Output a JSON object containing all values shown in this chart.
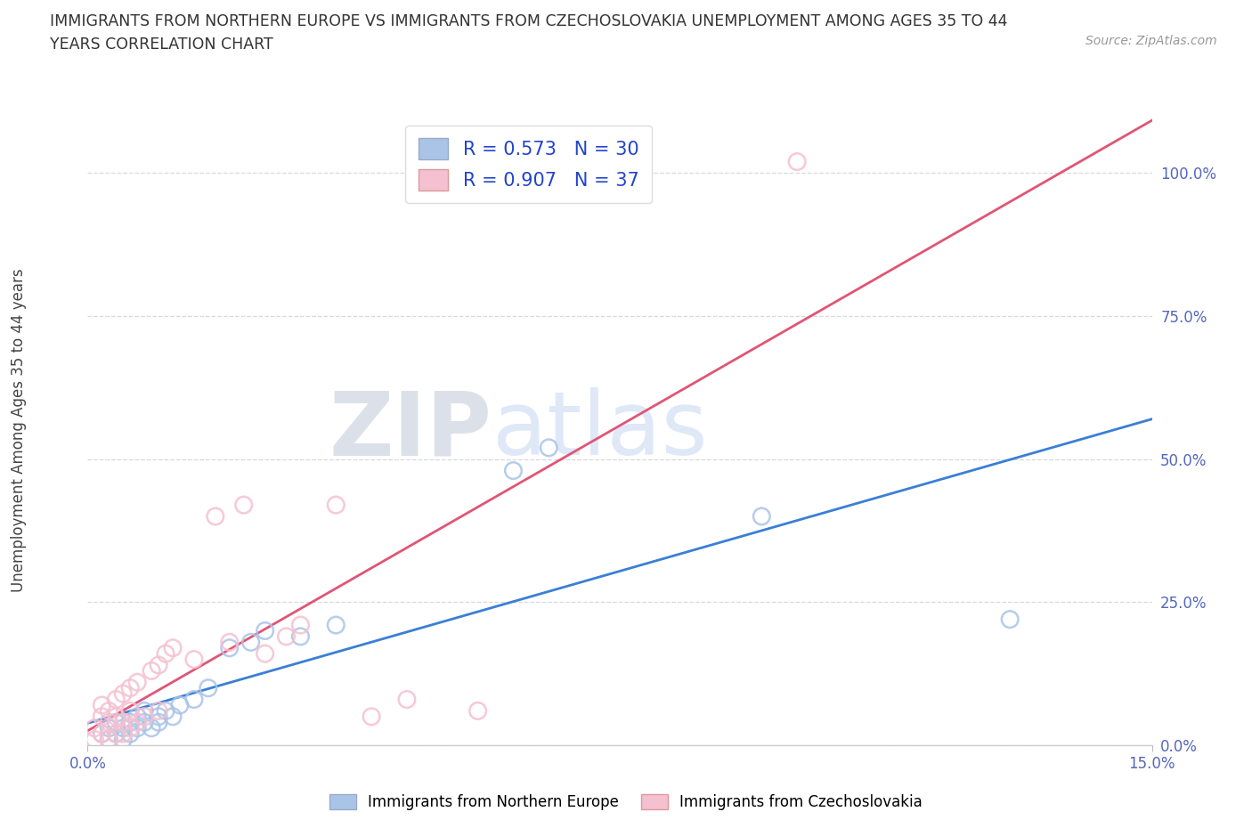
{
  "title_line1": "IMMIGRANTS FROM NORTHERN EUROPE VS IMMIGRANTS FROM CZECHOSLOVAKIA UNEMPLOYMENT AMONG AGES 35 TO 44",
  "title_line2": "YEARS CORRELATION CHART",
  "source": "Source: ZipAtlas.com",
  "ylabel": "Unemployment Among Ages 35 to 44 years",
  "xlim": [
    0.0,
    0.15
  ],
  "ylim": [
    0.0,
    1.1
  ],
  "ytick_values": [
    0.0,
    0.25,
    0.5,
    0.75,
    1.0
  ],
  "ytick_labels": [
    "0.0%",
    "25.0%",
    "50.0%",
    "75.0%",
    "100.0%"
  ],
  "watermark_zip": "ZIP",
  "watermark_atlas": "atlas",
  "blue_scatter_color": "#aac4e8",
  "blue_scatter_edge": "#6699cc",
  "pink_scatter_color": "#f5c0d0",
  "pink_scatter_edge": "#e07090",
  "blue_line_color": "#3a7fd4",
  "pink_line_color": "#e05575",
  "R_blue": 0.573,
  "N_blue": 30,
  "R_pink": 0.907,
  "N_pink": 37,
  "blue_points_x": [
    0.002,
    0.003,
    0.003,
    0.004,
    0.004,
    0.005,
    0.005,
    0.006,
    0.006,
    0.007,
    0.007,
    0.008,
    0.008,
    0.009,
    0.01,
    0.01,
    0.011,
    0.012,
    0.013,
    0.015,
    0.017,
    0.02,
    0.023,
    0.025,
    0.03,
    0.035,
    0.06,
    0.065,
    0.095,
    0.13
  ],
  "blue_points_y": [
    0.02,
    0.01,
    0.03,
    0.02,
    0.04,
    0.01,
    0.03,
    0.02,
    0.04,
    0.03,
    0.05,
    0.04,
    0.06,
    0.03,
    0.05,
    0.04,
    0.06,
    0.05,
    0.07,
    0.08,
    0.1,
    0.17,
    0.18,
    0.2,
    0.19,
    0.21,
    0.48,
    0.52,
    0.4,
    0.22
  ],
  "pink_points_x": [
    0.001,
    0.001,
    0.002,
    0.002,
    0.002,
    0.003,
    0.003,
    0.003,
    0.004,
    0.004,
    0.004,
    0.005,
    0.005,
    0.005,
    0.006,
    0.006,
    0.006,
    0.007,
    0.007,
    0.008,
    0.009,
    0.01,
    0.01,
    0.011,
    0.012,
    0.015,
    0.018,
    0.02,
    0.022,
    0.025,
    0.028,
    0.03,
    0.035,
    0.04,
    0.045,
    0.055,
    0.1
  ],
  "pink_points_y": [
    0.01,
    0.03,
    0.02,
    0.05,
    0.07,
    0.01,
    0.04,
    0.06,
    0.02,
    0.05,
    0.08,
    0.02,
    0.04,
    0.09,
    0.03,
    0.06,
    0.1,
    0.04,
    0.11,
    0.05,
    0.13,
    0.06,
    0.14,
    0.16,
    0.17,
    0.15,
    0.4,
    0.18,
    0.42,
    0.16,
    0.19,
    0.21,
    0.42,
    0.05,
    0.08,
    0.06,
    1.02
  ],
  "legend_label_blue": "Immigrants from Northern Europe",
  "legend_label_pink": "Immigrants from Czechoslovakia",
  "background_color": "#ffffff",
  "grid_color": "#d8d8d8",
  "tick_color": "#5566bb",
  "title_color": "#333333",
  "ylabel_color": "#444444"
}
